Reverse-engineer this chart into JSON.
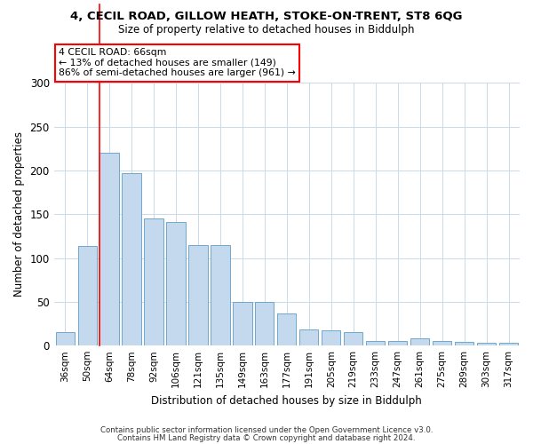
{
  "title1": "4, CECIL ROAD, GILLOW HEATH, STOKE-ON-TRENT, ST8 6QG",
  "title2": "Size of property relative to detached houses in Biddulph",
  "xlabel": "Distribution of detached houses by size in Biddulph",
  "ylabel": "Number of detached properties",
  "categories": [
    "36sqm",
    "50sqm",
    "64sqm",
    "78sqm",
    "92sqm",
    "106sqm",
    "121sqm",
    "135sqm",
    "149sqm",
    "163sqm",
    "177sqm",
    "191sqm",
    "205sqm",
    "219sqm",
    "233sqm",
    "247sqm",
    "261sqm",
    "275sqm",
    "289sqm",
    "303sqm",
    "317sqm"
  ],
  "values": [
    15,
    114,
    220,
    197,
    145,
    141,
    115,
    115,
    50,
    50,
    37,
    18,
    17,
    15,
    5,
    5,
    8,
    5,
    4,
    3,
    3
  ],
  "bar_color": "#C5D9EE",
  "bar_edge_color": "#6FA8CC",
  "red_line_index": 2,
  "annotation_line1": "4 CECIL ROAD: 66sqm",
  "annotation_line2": "← 13% of detached houses are smaller (149)",
  "annotation_line3": "86% of semi-detached houses are larger (961) →",
  "ylim": [
    0,
    300
  ],
  "yticks": [
    0,
    50,
    100,
    150,
    200,
    250,
    300
  ],
  "background_color": "#ffffff",
  "grid_color": "#ccd9e8",
  "footer_line1": "Contains HM Land Registry data © Crown copyright and database right 2024.",
  "footer_line2": "Contains public sector information licensed under the Open Government Licence v3.0."
}
